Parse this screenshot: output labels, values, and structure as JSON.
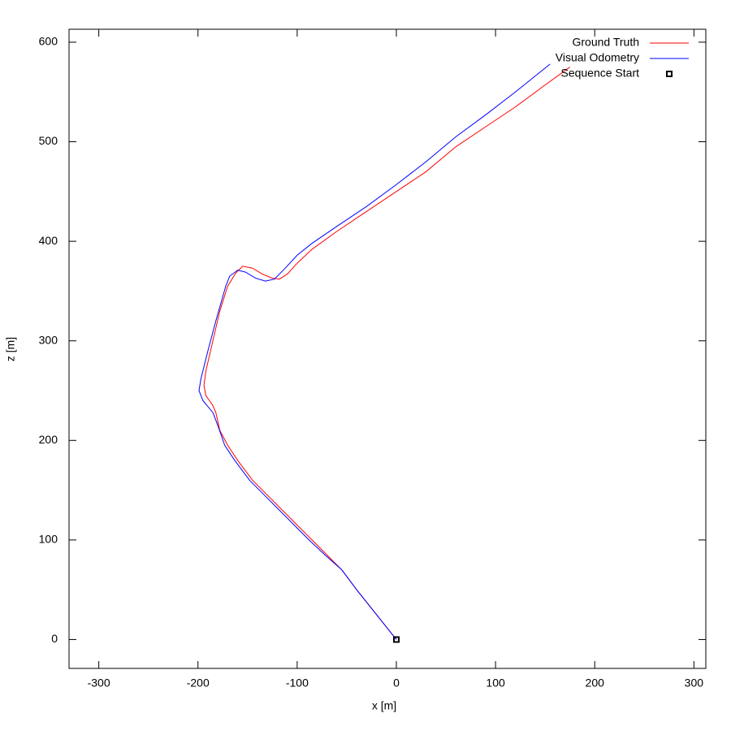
{
  "chart_data": {
    "type": "line",
    "xlabel": "x [m]",
    "ylabel": "z [m]",
    "xlim": [
      -330,
      312
    ],
    "ylim": [
      -29,
      613
    ],
    "xticks": [
      -300,
      -200,
      -100,
      0,
      100,
      200,
      300
    ],
    "yticks": [
      0,
      100,
      200,
      300,
      400,
      500,
      600
    ],
    "grid": false,
    "legend": "top-right",
    "series": [
      {
        "name": "Ground Truth",
        "color": "#ff0000",
        "style": "line",
        "x": [
          0,
          -20,
          -40,
          -55,
          -70,
          -85,
          -100,
          -115,
          -130,
          -145,
          -160,
          -170,
          -178,
          -182,
          -185,
          -192,
          -194,
          -192,
          -185,
          -178,
          -170,
          -162,
          -155,
          -145,
          -135,
          -125,
          -118,
          -110,
          -100,
          -85,
          -60,
          -30,
          0,
          30,
          60,
          90,
          120,
          150,
          175
        ],
        "values": [
          0,
          25,
          50,
          70,
          85,
          100,
          115,
          130,
          145,
          160,
          180,
          195,
          210,
          228,
          235,
          245,
          255,
          270,
          300,
          330,
          355,
          368,
          375,
          373,
          367,
          363,
          362,
          367,
          378,
          392,
          410,
          430,
          450,
          470,
          495,
          515,
          535,
          557,
          575
        ]
      },
      {
        "name": "Visual Odometry",
        "color": "#0000ff",
        "style": "line",
        "x": [
          0,
          -20,
          -40,
          -55,
          -72,
          -88,
          -103,
          -118,
          -133,
          -148,
          -163,
          -173,
          -180,
          -185,
          -195,
          -199,
          -197,
          -190,
          -182,
          -172,
          -168,
          -160,
          -152,
          -142,
          -132,
          -123,
          -113,
          -100,
          -85,
          -60,
          -30,
          0,
          30,
          60,
          90,
          120,
          155
        ],
        "values": [
          0,
          25,
          50,
          70,
          85,
          100,
          115,
          130,
          145,
          160,
          180,
          195,
          215,
          228,
          240,
          250,
          262,
          290,
          320,
          355,
          365,
          371,
          369,
          363,
          360,
          362,
          372,
          386,
          398,
          415,
          435,
          457,
          480,
          505,
          527,
          550,
          578
        ]
      },
      {
        "name": "Sequence Start",
        "color": "#000000",
        "style": "point",
        "x": [
          0
        ],
        "values": [
          0
        ]
      }
    ]
  }
}
